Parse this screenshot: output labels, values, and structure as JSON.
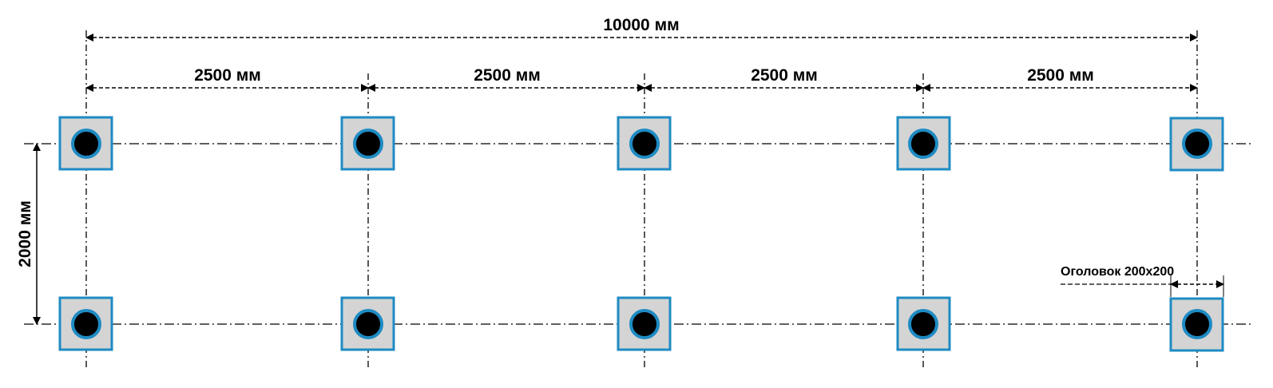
{
  "labels": {
    "total_width": "10000 мм",
    "span_1": "2500 мм",
    "span_2": "2500 мм",
    "span_3": "2500 мм",
    "span_4": "2500 мм",
    "row_spacing": "2000 мм",
    "cap_label": "Оголовок 200х200"
  },
  "colors": {
    "cap_fill": "#d4d4d4",
    "cap_stroke": "#1e8bc3",
    "pile_fill": "#000000",
    "pile_ring": "#1e8bc3",
    "line": "#000000"
  },
  "grid": {
    "columns": 5,
    "rows": 2
  }
}
